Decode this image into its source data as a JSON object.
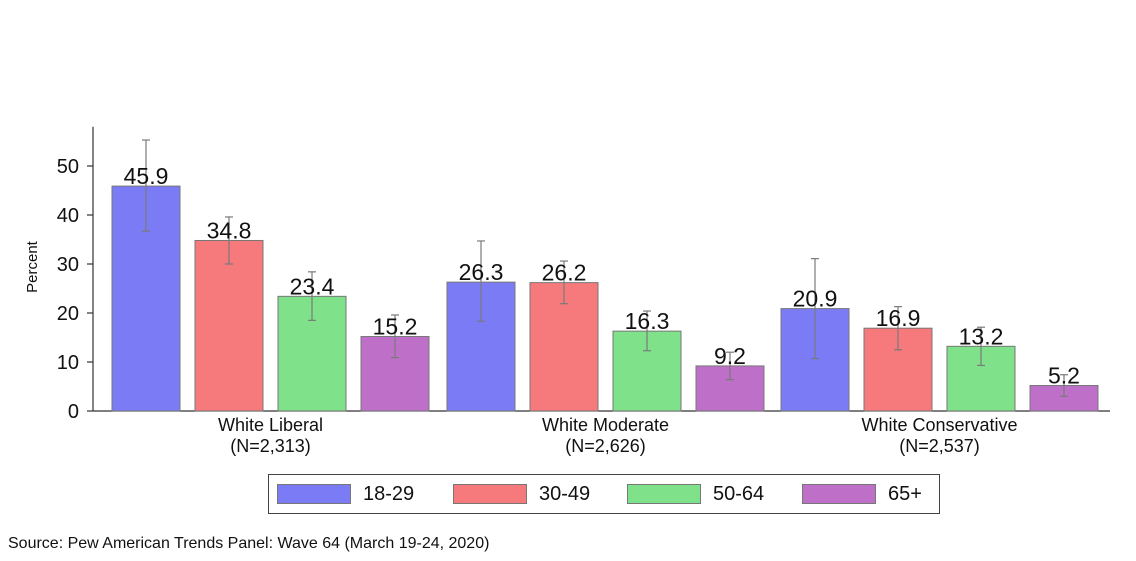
{
  "chart_data": {
    "type": "bar",
    "ylabel": "Percent",
    "ylim": [
      0,
      58
    ],
    "yticks": [
      0,
      10,
      20,
      30,
      40,
      50
    ],
    "categories": [
      {
        "line1": "White Liberal",
        "line2": "(N=2,313)"
      },
      {
        "line1": "White Moderate",
        "line2": "(N=2,626)"
      },
      {
        "line1": "White Conservative",
        "line2": "(N=2,537)"
      }
    ],
    "series": [
      {
        "name": "18-29",
        "color": "#7b7bf6",
        "values": [
          45.9,
          26.3,
          20.9
        ],
        "ci_low": [
          36.7,
          18.3,
          10.7
        ],
        "ci_high": [
          55.3,
          34.7,
          31.1
        ]
      },
      {
        "name": "30-49",
        "color": "#f6797c",
        "values": [
          34.8,
          26.2,
          16.9
        ],
        "ci_low": [
          30.0,
          21.9,
          12.5
        ],
        "ci_high": [
          39.6,
          30.6,
          21.3
        ]
      },
      {
        "name": "50-64",
        "color": "#7fe28a",
        "values": [
          23.4,
          16.3,
          13.2
        ],
        "ci_low": [
          18.5,
          12.3,
          9.3
        ],
        "ci_high": [
          28.4,
          20.4,
          17.1
        ]
      },
      {
        "name": "65+",
        "color": "#be70c9",
        "values": [
          15.2,
          9.2,
          5.2
        ],
        "ci_low": [
          10.9,
          6.4,
          3.0
        ],
        "ci_high": [
          19.6,
          12.0,
          7.4
        ]
      }
    ],
    "data_labels": true,
    "legend_position": "bottom",
    "grid": false
  },
  "source": "Source: Pew American Trends Panel: Wave 64 (March 19-24, 2020)"
}
